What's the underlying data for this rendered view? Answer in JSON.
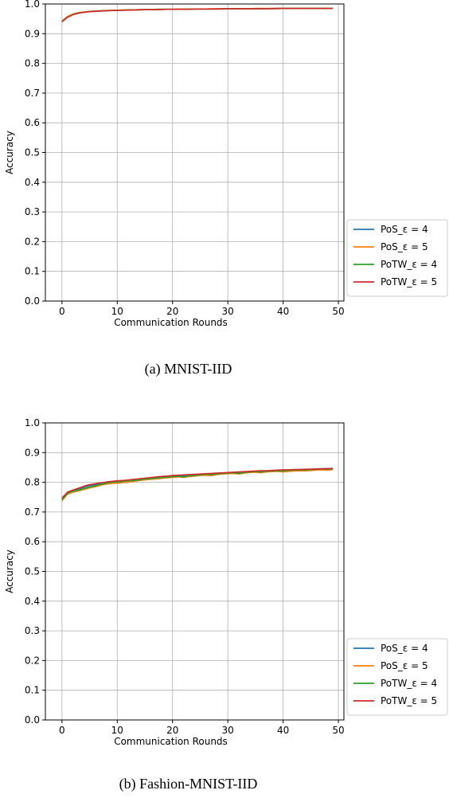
{
  "chart_data": [
    {
      "type": "line",
      "caption": "(a) MNIST-IID",
      "xlabel": "Communication Rounds",
      "ylabel": "Accuracy",
      "xlim": [
        -3,
        51
      ],
      "ylim": [
        0.0,
        1.0
      ],
      "xticks": [
        0,
        10,
        20,
        30,
        40,
        50
      ],
      "yticks": [
        0.0,
        0.1,
        0.2,
        0.3,
        0.4,
        0.5,
        0.6,
        0.7,
        0.8,
        0.9,
        1.0
      ],
      "grid": true,
      "legend_position": "right, outside",
      "x": [
        0,
        1,
        2,
        3,
        4,
        5,
        6,
        7,
        8,
        9,
        10,
        11,
        12,
        13,
        14,
        15,
        16,
        17,
        18,
        19,
        20,
        21,
        22,
        23,
        24,
        25,
        26,
        27,
        28,
        29,
        30,
        31,
        32,
        33,
        34,
        35,
        36,
        37,
        38,
        39,
        40,
        41,
        42,
        43,
        44,
        45,
        46,
        47,
        48,
        49
      ],
      "series": [
        {
          "name": "PoS_ε = 4",
          "color": "#1f77b4",
          "values": [
            0.942,
            0.957,
            0.966,
            0.97,
            0.973,
            0.975,
            0.976,
            0.977,
            0.978,
            0.978,
            0.979,
            0.979,
            0.98,
            0.98,
            0.981,
            0.981,
            0.981,
            0.982,
            0.982,
            0.982,
            0.982,
            0.982,
            0.983,
            0.983,
            0.983,
            0.983,
            0.983,
            0.983,
            0.984,
            0.984,
            0.984,
            0.984,
            0.984,
            0.984,
            0.984,
            0.984,
            0.984,
            0.984,
            0.985,
            0.985,
            0.985,
            0.985,
            0.985,
            0.985,
            0.985,
            0.985,
            0.985,
            0.985,
            0.985,
            0.985
          ]
        },
        {
          "name": "PoS_ε = 5",
          "color": "#ff7f0e",
          "values": [
            0.943,
            0.958,
            0.966,
            0.971,
            0.973,
            0.975,
            0.976,
            0.977,
            0.978,
            0.978,
            0.979,
            0.98,
            0.98,
            0.98,
            0.981,
            0.981,
            0.981,
            0.982,
            0.982,
            0.982,
            0.982,
            0.983,
            0.983,
            0.983,
            0.983,
            0.983,
            0.983,
            0.984,
            0.984,
            0.984,
            0.984,
            0.984,
            0.984,
            0.984,
            0.984,
            0.985,
            0.985,
            0.985,
            0.985,
            0.985,
            0.985,
            0.985,
            0.985,
            0.985,
            0.985,
            0.985,
            0.985,
            0.985,
            0.985,
            0.985
          ]
        },
        {
          "name": "PoTW_ε = 4",
          "color": "#2ca02c",
          "values": [
            0.941,
            0.956,
            0.965,
            0.97,
            0.972,
            0.974,
            0.976,
            0.977,
            0.977,
            0.978,
            0.979,
            0.979,
            0.98,
            0.98,
            0.98,
            0.981,
            0.981,
            0.981,
            0.982,
            0.982,
            0.982,
            0.982,
            0.982,
            0.983,
            0.983,
            0.983,
            0.983,
            0.983,
            0.983,
            0.984,
            0.984,
            0.984,
            0.984,
            0.984,
            0.984,
            0.984,
            0.984,
            0.984,
            0.984,
            0.984,
            0.985,
            0.985,
            0.985,
            0.985,
            0.985,
            0.985,
            0.985,
            0.985,
            0.985,
            0.985
          ]
        },
        {
          "name": "PoTW_ε = 5",
          "color": "#d62728",
          "values": [
            0.94,
            0.955,
            0.964,
            0.969,
            0.972,
            0.974,
            0.975,
            0.976,
            0.977,
            0.978,
            0.978,
            0.979,
            0.979,
            0.98,
            0.98,
            0.981,
            0.981,
            0.981,
            0.981,
            0.982,
            0.982,
            0.982,
            0.982,
            0.982,
            0.983,
            0.983,
            0.983,
            0.983,
            0.983,
            0.983,
            0.984,
            0.984,
            0.984,
            0.984,
            0.984,
            0.984,
            0.984,
            0.984,
            0.984,
            0.985,
            0.985,
            0.985,
            0.985,
            0.985,
            0.985,
            0.985,
            0.985,
            0.985,
            0.985,
            0.985
          ]
        }
      ]
    },
    {
      "type": "line",
      "caption": "(b) Fashion-MNIST-IID",
      "xlabel": "Communication Rounds",
      "ylabel": "Accuracy",
      "xlim": [
        -3,
        51
      ],
      "ylim": [
        0.0,
        1.0
      ],
      "xticks": [
        0,
        10,
        20,
        30,
        40,
        50
      ],
      "yticks": [
        0.0,
        0.1,
        0.2,
        0.3,
        0.4,
        0.5,
        0.6,
        0.7,
        0.8,
        0.9,
        1.0
      ],
      "grid": true,
      "legend_position": "right, outside",
      "x": [
        0,
        1,
        2,
        3,
        4,
        5,
        6,
        7,
        8,
        9,
        10,
        11,
        12,
        13,
        14,
        15,
        16,
        17,
        18,
        19,
        20,
        21,
        22,
        23,
        24,
        25,
        26,
        27,
        28,
        29,
        30,
        31,
        32,
        33,
        34,
        35,
        36,
        37,
        38,
        39,
        40,
        41,
        42,
        43,
        44,
        45,
        46,
        47,
        48,
        49
      ],
      "series": [
        {
          "name": "PoS_ε = 4",
          "color": "#1f77b4",
          "values": [
            0.745,
            0.764,
            0.772,
            0.777,
            0.784,
            0.789,
            0.792,
            0.796,
            0.799,
            0.801,
            0.803,
            0.804,
            0.806,
            0.808,
            0.81,
            0.812,
            0.813,
            0.815,
            0.817,
            0.818,
            0.82,
            0.821,
            0.822,
            0.823,
            0.825,
            0.826,
            0.827,
            0.828,
            0.829,
            0.83,
            0.831,
            0.832,
            0.833,
            0.834,
            0.835,
            0.836,
            0.837,
            0.838,
            0.839,
            0.839,
            0.84,
            0.841,
            0.842,
            0.843,
            0.843,
            0.844,
            0.845,
            0.846,
            0.846,
            0.847
          ]
        },
        {
          "name": "PoS_ε = 5",
          "color": "#ff7f0e",
          "values": [
            0.738,
            0.76,
            0.767,
            0.771,
            0.776,
            0.781,
            0.785,
            0.79,
            0.794,
            0.796,
            0.797,
            0.799,
            0.8,
            0.803,
            0.806,
            0.808,
            0.81,
            0.811,
            0.813,
            0.815,
            0.816,
            0.818,
            0.816,
            0.819,
            0.821,
            0.823,
            0.824,
            0.822,
            0.826,
            0.828,
            0.829,
            0.83,
            0.828,
            0.831,
            0.833,
            0.834,
            0.832,
            0.835,
            0.836,
            0.837,
            0.835,
            0.837,
            0.838,
            0.839,
            0.838,
            0.84,
            0.841,
            0.842,
            0.841,
            0.843
          ]
        },
        {
          "name": "PoTW_ε = 4",
          "color": "#2ca02c",
          "values": [
            0.741,
            0.763,
            0.77,
            0.774,
            0.779,
            0.784,
            0.788,
            0.793,
            0.797,
            0.8,
            0.801,
            0.803,
            0.805,
            0.806,
            0.808,
            0.811,
            0.812,
            0.814,
            0.816,
            0.817,
            0.819,
            0.82,
            0.818,
            0.822,
            0.823,
            0.825,
            0.827,
            0.826,
            0.828,
            0.83,
            0.831,
            0.832,
            0.83,
            0.833,
            0.835,
            0.836,
            0.835,
            0.837,
            0.838,
            0.839,
            0.838,
            0.84,
            0.841,
            0.842,
            0.841,
            0.843,
            0.844,
            0.845,
            0.844,
            0.846
          ]
        },
        {
          "name": "PoTW_ε = 5",
          "color": "#d62728",
          "values": [
            0.747,
            0.767,
            0.774,
            0.78,
            0.787,
            0.792,
            0.795,
            0.798,
            0.801,
            0.803,
            0.805,
            0.806,
            0.808,
            0.81,
            0.812,
            0.814,
            0.816,
            0.818,
            0.82,
            0.821,
            0.823,
            0.824,
            0.825,
            0.826,
            0.827,
            0.828,
            0.829,
            0.83,
            0.831,
            0.832,
            0.833,
            0.834,
            0.835,
            0.836,
            0.837,
            0.838,
            0.839,
            0.839,
            0.84,
            0.841,
            0.842,
            0.842,
            0.843,
            0.843,
            0.844,
            0.844,
            0.845,
            0.845,
            0.846,
            0.846
          ]
        }
      ]
    }
  ]
}
